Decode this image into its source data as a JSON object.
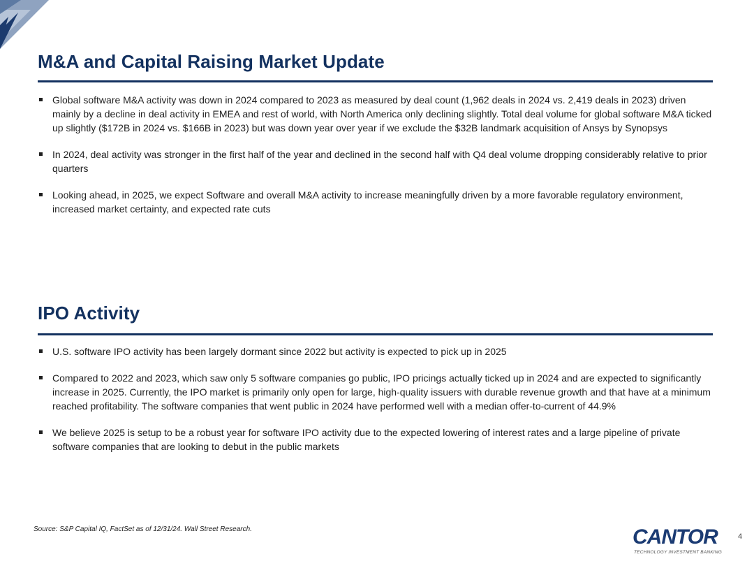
{
  "sections": [
    {
      "title": "M&A and Capital Raising Market Update",
      "bullets": [
        "Global software M&A activity was down in 2024 compared to 2023 as measured by deal count (1,962 deals in 2024 vs. 2,419 deals in 2023) driven mainly by a decline in deal activity in EMEA and rest of world, with North America only declining slightly. Total deal volume for global software M&A ticked up slightly ($172B in 2024 vs. $166B in 2023) but was down year over year if we exclude the $32B landmark acquisition of Ansys by Synopsys",
        "In 2024, deal activity was stronger in the first half of the year and declined in the second half with Q4 deal volume dropping considerably relative to prior quarters",
        "Looking ahead, in 2025, we expect Software and overall M&A activity to increase meaningfully driven by a more favorable regulatory environment, increased market certainty, and expected rate cuts"
      ]
    },
    {
      "title": "IPO Activity",
      "bullets": [
        "U.S. software IPO activity has been largely dormant since 2022 but activity is expected to pick up in 2025",
        "Compared to 2022 and 2023, which saw only 5 software companies go public, IPO pricings actually ticked up in 2024 and are expected to significantly increase in 2025. Currently, the IPO market is primarily only open for large, high-quality issuers with durable revenue growth and that have at a minimum reached profitability. The software companies that went public in 2024 have performed well with a median offer-to-current of 44.9%",
        "We believe 2025 is setup to be a robust year for software IPO activity due to the expected lowering of interest rates and a large pipeline of private software companies that are looking to debut in the public markets"
      ]
    }
  ],
  "footer": {
    "source": "Source: S&P Capital IQ, FactSet as of 12/31/24. Wall Street Research.",
    "logo_text": "CANTOR",
    "logo_tagline": "TECHNOLOGY INVESTMENT BANKING",
    "page_number": "4"
  },
  "colors": {
    "title": "#13315f",
    "rule": "#13315f",
    "logo": "#1b3b73",
    "corner_dark": "#1c3b6e",
    "corner_light": "#8fa3c0"
  }
}
